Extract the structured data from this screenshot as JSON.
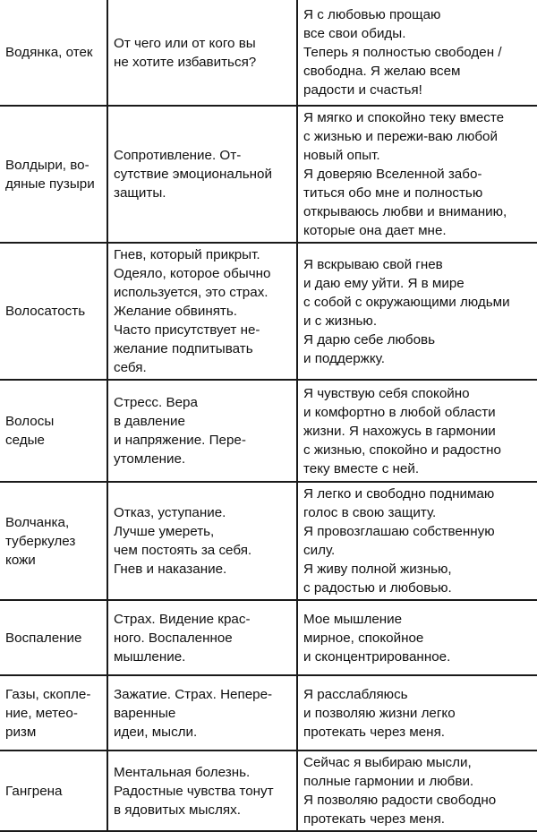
{
  "rows": [
    {
      "condition": [
        "Водянка, отек"
      ],
      "cause": [
        "От чего или от кого вы",
        "не хотите избавиться?"
      ],
      "affirmation": [
        "Я с любовью прощаю",
        "все свои обиды.",
        "Теперь я полностью свободен /",
        "свободна. Я желаю всем",
        "радости и счастья!"
      ]
    },
    {
      "condition": [
        "Волдыри, во-",
        "дяные пузыри"
      ],
      "cause": [
        "Сопротивление. От-",
        "сутствие эмоциональной",
        "защиты."
      ],
      "affirmation": [
        "Я мягко и спокойно теку вместе",
        "с жизнью и пережи-ваю любой",
        "новый опыт.",
        "Я доверяю Вселенной забо-",
        "титься обо мне  и полностью",
        "открываюсь любви и вниманию,",
        "которые она дает мне."
      ]
    },
    {
      "condition": [
        "Волосатость"
      ],
      "cause": [
        "Гнев, который прикрыт.",
        "Одеяло, которое обычно",
        "используется, это страх.",
        "Желание обвинять.",
        "Часто присутствует не-",
        "желание подпитывать",
        "себя."
      ],
      "affirmation": [
        "Я вскрываю свой гнев",
        "и даю ему уйти. Я в мире",
        "с собой с окружающими людьми",
        "и с жизнью.",
        "Я дарю себе любовь",
        "и поддержку."
      ]
    },
    {
      "condition": [
        "Волосы",
        "седые"
      ],
      "cause": [
        "Стресс. Вера",
        "в давление",
        "и напряжение. Пере-",
        "утомление."
      ],
      "affirmation": [
        "Я чувствую себя спокойно",
        "и комфортно в любой области",
        "жизни. Я нахожусь в гармонии",
        "с жизнью, спокойно и радостно",
        "теку вместе с ней."
      ]
    },
    {
      "condition": [
        "Волчанка,",
        "туберкулез",
        "кожи"
      ],
      "cause": [
        "Отказ, уступание.",
        "Лучше умереть,",
        "чем постоять за себя.",
        "Гнев и наказание."
      ],
      "affirmation": [
        "Я легко и свободно поднимаю",
        "голос в свою защиту.",
        "Я провозглашаю собственную",
        "силу.",
        "Я живу полной жизнью,",
        "с радостью и любовью."
      ]
    },
    {
      "condition": [
        "Воспаление"
      ],
      "cause": [
        "Страх. Видение крас-",
        "ного. Воспаленное",
        "мышление."
      ],
      "affirmation": [
        "Мое мышление",
        "мирное, спокойное",
        "и сконцентрированное."
      ]
    },
    {
      "condition": [
        "Газы, скопле-",
        "ние, метео-",
        "ризм"
      ],
      "cause": [
        "Зажатие. Страх. Непере-",
        "варенные",
        "идеи, мысли."
      ],
      "affirmation": [
        "Я расслабляюсь",
        "и позволяю жизни легко",
        "протекать через меня."
      ]
    },
    {
      "condition": [
        "Гангрена"
      ],
      "cause": [
        "Ментальная болезнь.",
        "Радостные чувства тонут",
        "в ядовитых мыслях."
      ],
      "affirmation": [
        "Сейчас я выбираю мысли,",
        "полные гармонии и любви.",
        "Я позволяю радости свободно",
        "протекать через меня."
      ]
    }
  ]
}
